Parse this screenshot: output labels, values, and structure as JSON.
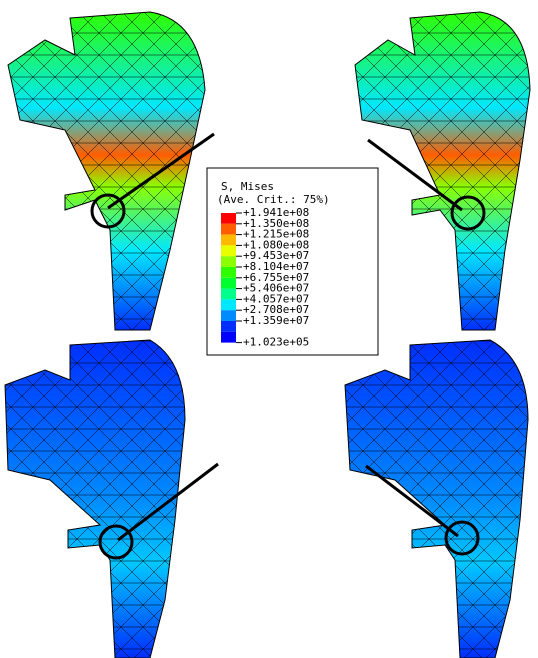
{
  "legend": {
    "title": [
      "S, Mises",
      "(Ave. Crit.: 75%)"
    ],
    "labels": [
      "+1.941e+08",
      "+1.350e+08",
      "+1.215e+08",
      "+1.080e+08",
      "+9.453e+07",
      "+8.104e+07",
      "+6.755e+07",
      "+5.406e+07",
      "+4.057e+07",
      "+2.708e+07",
      "+1.359e+07",
      "+1.023e+05"
    ],
    "colors": [
      "#ff0000",
      "#ff5d00",
      "#ffb900",
      "#e8ff00",
      "#8bff00",
      "#2eff00",
      "#00ff2e",
      "#00ff8b",
      "#00e8ff",
      "#008bff",
      "#002eff",
      "#0000ff"
    ]
  }
}
